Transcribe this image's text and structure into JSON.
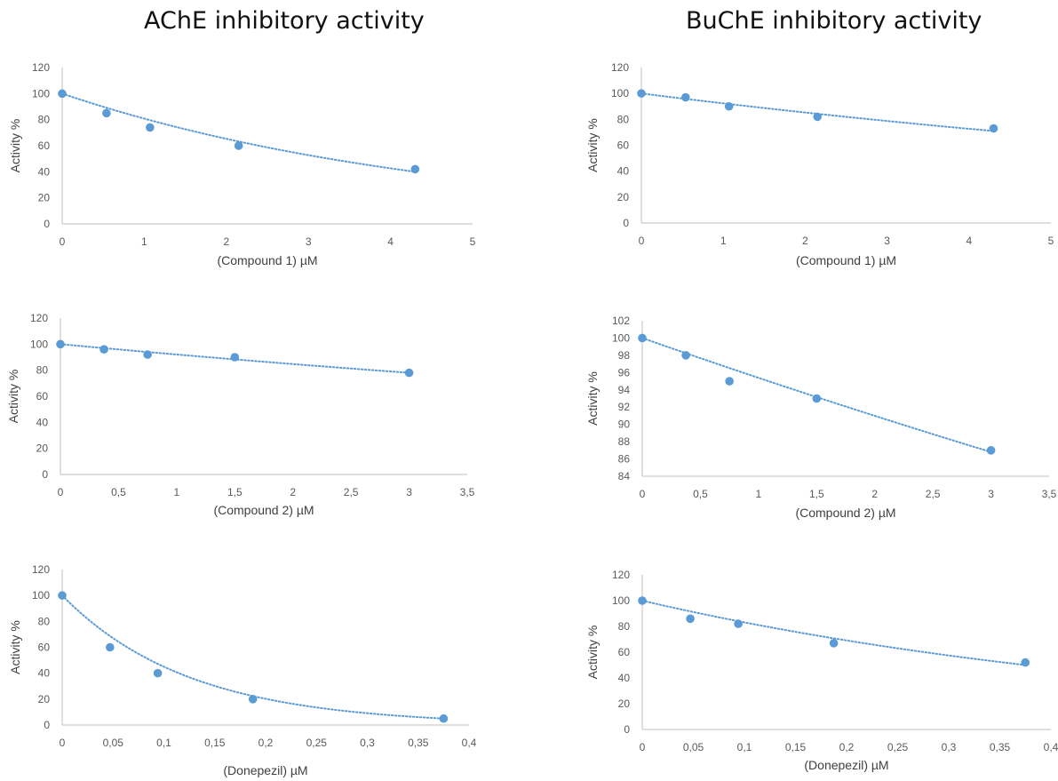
{
  "column_titles": {
    "left": "AChE inhibitory activity",
    "right": "BuChE inhibitory activity"
  },
  "colors": {
    "marker": "#5b9bd5",
    "trendline": "#5b9bd5",
    "axis": "#bfbfbf",
    "tick_text": "#595959"
  },
  "chart_data": [
    {
      "type": "scatter",
      "panel": "AChE compound 1",
      "xlabel": "(Compound 1) µM",
      "ylabel": "Activity %",
      "xlim": [
        0,
        5
      ],
      "ylim": [
        0,
        120
      ],
      "xticks": [
        0,
        1,
        2,
        3,
        4,
        5
      ],
      "yticks": [
        0,
        20,
        40,
        60,
        80,
        100,
        120
      ],
      "xtick_labels": [
        "0",
        "1",
        "2",
        "3",
        "4",
        "5"
      ],
      "ytick_labels": [
        "0",
        "20",
        "40",
        "60",
        "80",
        "100",
        "120"
      ],
      "x": [
        0,
        0.54,
        1.07,
        2.15,
        4.3
      ],
      "y": [
        100,
        85,
        74,
        60,
        42
      ],
      "trendline": {
        "type": "exponential",
        "x": [
          0,
          4.3
        ],
        "y": [
          100,
          40
        ]
      },
      "grid": false,
      "legend": "none"
    },
    {
      "type": "scatter",
      "panel": "BuChE compound 1",
      "xlabel": "(Compound 1) µM",
      "ylabel": "Activity %",
      "xlim": [
        0,
        5
      ],
      "ylim": [
        0,
        120
      ],
      "xticks": [
        0,
        1,
        2,
        3,
        4,
        5
      ],
      "yticks": [
        0,
        20,
        40,
        60,
        80,
        100,
        120
      ],
      "xtick_labels": [
        "0",
        "1",
        "2",
        "3",
        "4",
        "5"
      ],
      "ytick_labels": [
        "0",
        "20",
        "40",
        "60",
        "80",
        "100",
        "120"
      ],
      "x": [
        0,
        0.54,
        1.07,
        2.15,
        4.3
      ],
      "y": [
        100,
        97,
        90,
        82,
        73
      ],
      "trendline": {
        "type": "exponential",
        "x": [
          0,
          4.3
        ],
        "y": [
          100,
          71
        ]
      },
      "grid": false,
      "legend": "none"
    },
    {
      "type": "scatter",
      "panel": "AChE compound 2",
      "xlabel": "(Compound 2) µM",
      "ylabel": "Activity %",
      "xlim": [
        0,
        3.5
      ],
      "ylim": [
        0,
        120
      ],
      "xticks": [
        0,
        0.5,
        1,
        1.5,
        2,
        2.5,
        3,
        3.5
      ],
      "yticks": [
        0,
        20,
        40,
        60,
        80,
        100,
        120
      ],
      "xtick_labels": [
        "0",
        "0,5",
        "1",
        "1,5",
        "2",
        "2,5",
        "3",
        "3,5"
      ],
      "ytick_labels": [
        "0",
        "20",
        "40",
        "60",
        "80",
        "100",
        "120"
      ],
      "x": [
        0,
        0.375,
        0.75,
        1.5,
        3
      ],
      "y": [
        100,
        96,
        92,
        90,
        78
      ],
      "trendline": {
        "type": "exponential",
        "x": [
          0,
          3
        ],
        "y": [
          100,
          78
        ]
      },
      "grid": false,
      "legend": "none"
    },
    {
      "type": "scatter",
      "panel": "BuChE compound 2",
      "xlabel": "(Compound 2) µM",
      "ylabel": "Activity %",
      "xlim": [
        0,
        3.5
      ],
      "ylim": [
        84,
        102
      ],
      "xticks": [
        0,
        0.5,
        1,
        1.5,
        2,
        2.5,
        3,
        3.5
      ],
      "yticks": [
        84,
        86,
        88,
        90,
        92,
        94,
        96,
        98,
        100,
        102
      ],
      "xtick_labels": [
        "0",
        "0,5",
        "1",
        "1,5",
        "2",
        "2,5",
        "3",
        "3,5"
      ],
      "ytick_labels": [
        "84",
        "86",
        "88",
        "90",
        "92",
        "94",
        "96",
        "98",
        "100",
        "102"
      ],
      "x": [
        0,
        0.375,
        0.75,
        1.5,
        3
      ],
      "y": [
        100,
        98,
        95,
        93,
        87
      ],
      "trendline": {
        "type": "exponential",
        "x": [
          0,
          3
        ],
        "y": [
          100,
          86.8
        ]
      },
      "grid": false,
      "legend": "none"
    },
    {
      "type": "scatter",
      "panel": "AChE donepezil",
      "xlabel": "(Donepezil) µM",
      "ylabel": "Activity %",
      "xlim": [
        0,
        0.4
      ],
      "ylim": [
        0,
        120
      ],
      "xticks": [
        0,
        0.05,
        0.1,
        0.15,
        0.2,
        0.25,
        0.3,
        0.35,
        0.4
      ],
      "yticks": [
        0,
        20,
        40,
        60,
        80,
        100,
        120
      ],
      "xtick_labels": [
        "0",
        "0,05",
        "0,1",
        "0,15",
        "0,2",
        "0,25",
        "0,3",
        "0,35",
        "0,4"
      ],
      "ytick_labels": [
        "0",
        "20",
        "40",
        "60",
        "80",
        "100",
        "120"
      ],
      "x": [
        0,
        0.047,
        0.094,
        0.1875,
        0.375
      ],
      "y": [
        100,
        60,
        40,
        20,
        5
      ],
      "trendline": {
        "type": "exponential",
        "x": [
          0,
          0.375
        ],
        "y": [
          100,
          5
        ]
      },
      "grid": false,
      "legend": "none"
    },
    {
      "type": "scatter",
      "panel": "BuChE donepezil",
      "xlabel": "(Donepezil) µM",
      "ylabel": "Activity %",
      "xlim": [
        0,
        0.4
      ],
      "ylim": [
        0,
        120
      ],
      "xticks": [
        0,
        0.05,
        0.1,
        0.15,
        0.2,
        0.25,
        0.3,
        0.35,
        0.4
      ],
      "yticks": [
        0,
        20,
        40,
        60,
        80,
        100,
        120
      ],
      "xtick_labels": [
        "0",
        "0,05",
        "0,1",
        "0,15",
        "0,2",
        "0,25",
        "0,3",
        "0,35",
        "0,4"
      ],
      "ytick_labels": [
        "0",
        "20",
        "40",
        "60",
        "80",
        "100",
        "120"
      ],
      "x": [
        0,
        0.047,
        0.094,
        0.1875,
        0.375
      ],
      "y": [
        100,
        86,
        82,
        67,
        52
      ],
      "trendline": {
        "type": "exponential",
        "x": [
          0,
          0.375
        ],
        "y": [
          100,
          50
        ]
      },
      "grid": false,
      "legend": "none"
    }
  ]
}
